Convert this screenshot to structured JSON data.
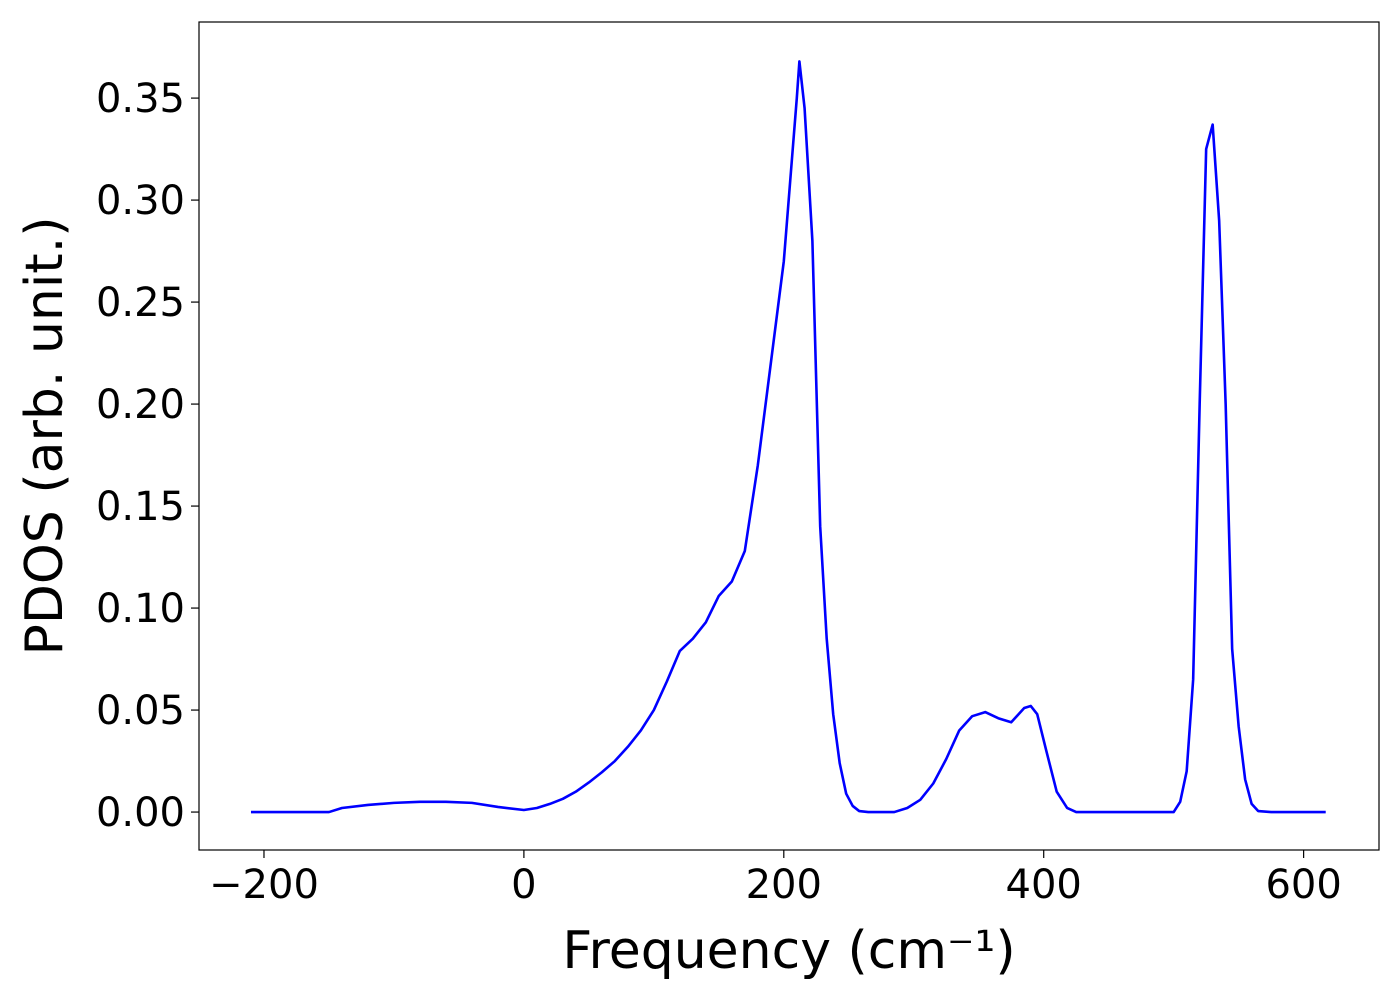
{
  "chart_data": {
    "type": "line",
    "x_label": "Frequency (cm⁻¹)",
    "y_label": "PDOS (arb. unit.)",
    "xlim": [
      -250,
      658
    ],
    "ylim": [
      -0.0186,
      0.3873
    ],
    "xticks": [
      {
        "value": -200,
        "label": "−200"
      },
      0,
      200,
      400,
      600
    ],
    "yticks": [
      {
        "value": 0,
        "label": "0.00"
      },
      0.05,
      {
        "value": 0.1,
        "label": "0.10"
      },
      0.15,
      {
        "value": 0.2,
        "label": "0.20"
      },
      0.25,
      {
        "value": 0.3,
        "label": "0.30"
      },
      0.35
    ],
    "grid": false,
    "series": [
      {
        "color": "#0000ff",
        "x": [
          -210,
          -150,
          -140,
          -120,
          -100,
          -80,
          -60,
          -40,
          -20,
          0,
          10,
          20,
          30,
          40,
          50,
          60,
          70,
          80,
          90,
          100,
          110,
          120,
          130,
          140,
          150,
          160,
          170,
          180,
          190,
          200,
          205,
          210,
          212,
          216,
          222,
          228,
          233,
          238,
          243,
          248,
          253,
          258,
          265,
          285,
          295,
          305,
          315,
          325,
          335,
          345,
          355,
          365,
          375,
          385,
          390,
          395,
          402,
          410,
          418,
          425,
          500,
          505,
          510,
          515,
          520,
          525,
          530,
          535,
          540,
          545,
          550,
          555,
          560,
          565,
          575,
          617
        ],
        "values": [
          0,
          0,
          0.002,
          0.0035,
          0.0045,
          0.005,
          0.005,
          0.0045,
          0.0025,
          0.001,
          0.002,
          0.004,
          0.0065,
          0.01,
          0.0145,
          0.0195,
          0.025,
          0.032,
          0.04,
          0.05,
          0.064,
          0.079,
          0.085,
          0.093,
          0.106,
          0.113,
          0.128,
          0.17,
          0.22,
          0.27,
          0.31,
          0.35,
          0.368,
          0.345,
          0.28,
          0.14,
          0.085,
          0.048,
          0.024,
          0.009,
          0.003,
          0.0005,
          0,
          0,
          0.002,
          0.006,
          0.014,
          0.026,
          0.04,
          0.047,
          0.049,
          0.046,
          0.044,
          0.051,
          0.052,
          0.048,
          0.03,
          0.01,
          0.002,
          0,
          0,
          0.005,
          0.02,
          0.065,
          0.2,
          0.325,
          0.337,
          0.29,
          0.2,
          0.08,
          0.042,
          0.016,
          0.004,
          0.0005,
          0,
          0
        ]
      }
    ]
  }
}
